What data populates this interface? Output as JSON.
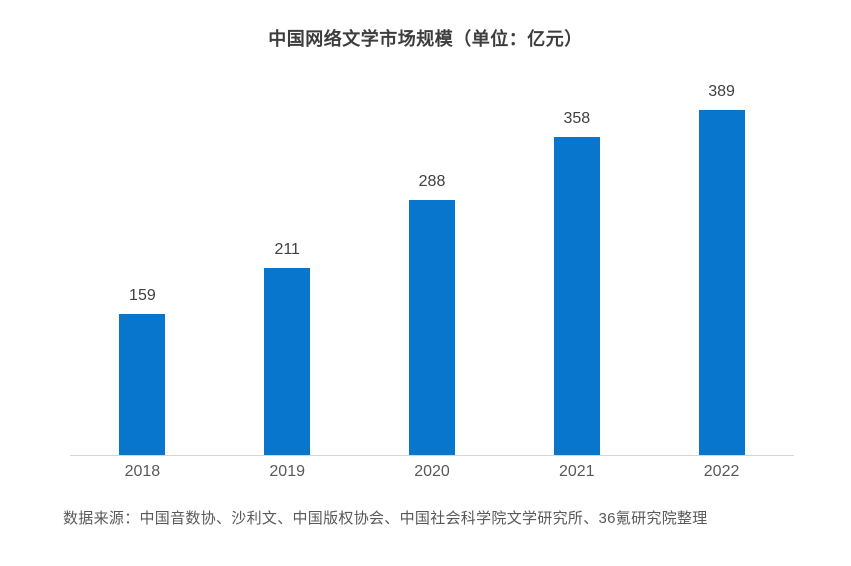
{
  "title": "中国网络文学市场规模（单位：亿元）",
  "source_note": "数据来源：中国音数协、沙利文、中国版权协会、中国社会科学院文学研究所、36氪研究院整理",
  "colors": {
    "bar": "#0876cc",
    "title_text": "#3d3d3d",
    "value_label_text": "#404040",
    "axis_label_text": "#595959",
    "axis_line": "#d6d6d6",
    "background": "#ffffff"
  },
  "chart_data": {
    "type": "bar",
    "title": "中国网络文学市场规模（单位：亿元）",
    "categories": [
      "2018",
      "2019",
      "2020",
      "2021",
      "2022"
    ],
    "values": [
      159,
      211,
      288,
      358,
      389
    ],
    "xlabel": "",
    "ylabel": "",
    "ylim": [
      0,
      389
    ],
    "grid": false,
    "legend": "none",
    "value_labels_shown": true,
    "bar_color": "#0876cc",
    "source_note": "数据来源：中国音数协、沙利文、中国版权协会、中国社会科学院文学研究所、36氪研究院整理"
  }
}
